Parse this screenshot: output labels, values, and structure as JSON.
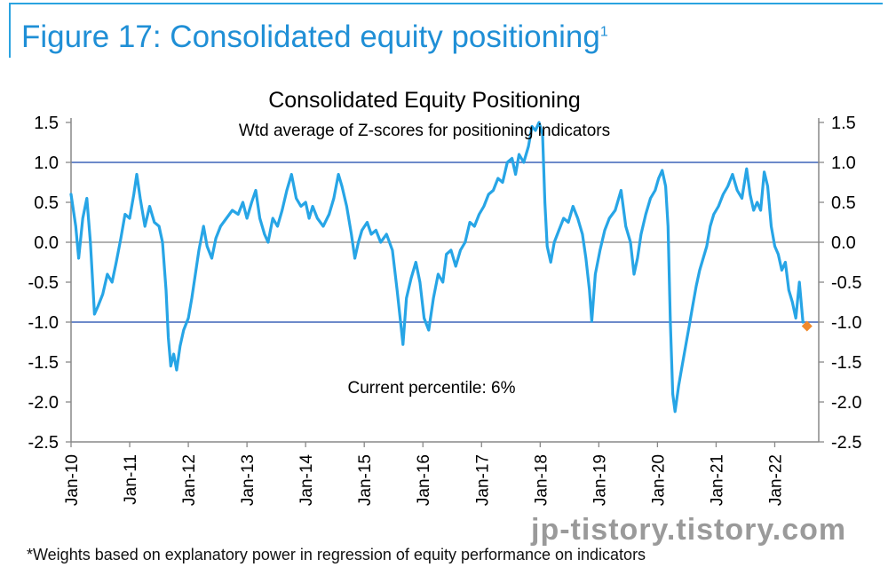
{
  "figure": {
    "title": "Figure 17: Consolidated equity positioning",
    "title_sup": "1",
    "footnote": "*Weights based on explanatory power in regression of equity performance on indicators",
    "watermark": "jp-tistory.tistory.com"
  },
  "chart_data": {
    "type": "line",
    "title": "Consolidated Equity Positioning",
    "subtitle": "Wtd average of Z-scores for positioning indicators",
    "annotation": "Current percentile: 6%",
    "xlabel": "",
    "ylabel": "",
    "ylim": [
      -2.5,
      1.5
    ],
    "yticks": [
      1.5,
      1.0,
      0.5,
      0.0,
      -0.5,
      -1.0,
      -1.5,
      -2.0,
      -2.5
    ],
    "ytick_labels": [
      "1.5",
      "1.0",
      "0.5",
      "0.0",
      "-0.5",
      "-1.0",
      "-1.5",
      "-2.0",
      "-2.5"
    ],
    "xtick_labels": [
      "Jan-10",
      "Jan-11",
      "Jan-12",
      "Jan-13",
      "Jan-14",
      "Jan-15",
      "Jan-16",
      "Jan-17",
      "Jan-18",
      "Jan-19",
      "Jan-20",
      "Jan-21",
      "Jan-22"
    ],
    "xlim": [
      2010.0,
      2022.75
    ],
    "reference_lines": [
      1.0,
      0.0,
      -1.0
    ],
    "series": [
      {
        "color": "#27a5e6",
        "points": [
          [
            2010.0,
            0.6
          ],
          [
            2010.08,
            0.2
          ],
          [
            2010.13,
            -0.2
          ],
          [
            2010.2,
            0.3
          ],
          [
            2010.27,
            0.55
          ],
          [
            2010.33,
            0.0
          ],
          [
            2010.4,
            -0.9
          ],
          [
            2010.46,
            -0.8
          ],
          [
            2010.54,
            -0.65
          ],
          [
            2010.62,
            -0.4
          ],
          [
            2010.7,
            -0.5
          ],
          [
            2010.77,
            -0.25
          ],
          [
            2010.85,
            0.05
          ],
          [
            2010.92,
            0.35
          ],
          [
            2011.0,
            0.3
          ],
          [
            2011.07,
            0.6
          ],
          [
            2011.12,
            0.85
          ],
          [
            2011.18,
            0.55
          ],
          [
            2011.26,
            0.2
          ],
          [
            2011.34,
            0.45
          ],
          [
            2011.42,
            0.25
          ],
          [
            2011.5,
            0.2
          ],
          [
            2011.56,
            0.0
          ],
          [
            2011.62,
            -0.6
          ],
          [
            2011.66,
            -1.2
          ],
          [
            2011.7,
            -1.55
          ],
          [
            2011.75,
            -1.4
          ],
          [
            2011.8,
            -1.6
          ],
          [
            2011.86,
            -1.3
          ],
          [
            2011.92,
            -1.1
          ],
          [
            2012.0,
            -0.95
          ],
          [
            2012.06,
            -0.7
          ],
          [
            2012.12,
            -0.4
          ],
          [
            2012.18,
            -0.1
          ],
          [
            2012.26,
            0.2
          ],
          [
            2012.32,
            -0.05
          ],
          [
            2012.4,
            -0.2
          ],
          [
            2012.47,
            0.05
          ],
          [
            2012.55,
            0.2
          ],
          [
            2012.65,
            0.3
          ],
          [
            2012.75,
            0.4
          ],
          [
            2012.85,
            0.35
          ],
          [
            2012.93,
            0.5
          ],
          [
            2013.0,
            0.3
          ],
          [
            2013.08,
            0.5
          ],
          [
            2013.15,
            0.65
          ],
          [
            2013.22,
            0.3
          ],
          [
            2013.3,
            0.1
          ],
          [
            2013.36,
            0.0
          ],
          [
            2013.44,
            0.3
          ],
          [
            2013.52,
            0.2
          ],
          [
            2013.6,
            0.4
          ],
          [
            2013.68,
            0.65
          ],
          [
            2013.76,
            0.85
          ],
          [
            2013.84,
            0.55
          ],
          [
            2013.92,
            0.45
          ],
          [
            2014.0,
            0.5
          ],
          [
            2014.06,
            0.3
          ],
          [
            2014.12,
            0.45
          ],
          [
            2014.2,
            0.3
          ],
          [
            2014.3,
            0.2
          ],
          [
            2014.4,
            0.35
          ],
          [
            2014.48,
            0.55
          ],
          [
            2014.56,
            0.85
          ],
          [
            2014.62,
            0.7
          ],
          [
            2014.7,
            0.45
          ],
          [
            2014.78,
            0.1
          ],
          [
            2014.84,
            -0.2
          ],
          [
            2014.9,
            0.0
          ],
          [
            2014.96,
            0.15
          ],
          [
            2015.05,
            0.25
          ],
          [
            2015.12,
            0.1
          ],
          [
            2015.2,
            0.15
          ],
          [
            2015.28,
            0.0
          ],
          [
            2015.38,
            0.1
          ],
          [
            2015.48,
            -0.1
          ],
          [
            2015.56,
            -0.6
          ],
          [
            2015.62,
            -1.0
          ],
          [
            2015.66,
            -1.28
          ],
          [
            2015.72,
            -0.7
          ],
          [
            2015.8,
            -0.45
          ],
          [
            2015.88,
            -0.25
          ],
          [
            2015.95,
            -0.5
          ],
          [
            2016.02,
            -0.95
          ],
          [
            2016.1,
            -1.1
          ],
          [
            2016.18,
            -0.7
          ],
          [
            2016.26,
            -0.4
          ],
          [
            2016.34,
            -0.5
          ],
          [
            2016.4,
            -0.15
          ],
          [
            2016.48,
            -0.1
          ],
          [
            2016.56,
            -0.3
          ],
          [
            2016.64,
            -0.1
          ],
          [
            2016.72,
            0.0
          ],
          [
            2016.8,
            0.25
          ],
          [
            2016.88,
            0.2
          ],
          [
            2016.96,
            0.35
          ],
          [
            2017.04,
            0.45
          ],
          [
            2017.12,
            0.6
          ],
          [
            2017.2,
            0.65
          ],
          [
            2017.28,
            0.8
          ],
          [
            2017.36,
            0.75
          ],
          [
            2017.44,
            1.0
          ],
          [
            2017.52,
            1.05
          ],
          [
            2017.58,
            0.85
          ],
          [
            2017.64,
            1.1
          ],
          [
            2017.72,
            1.0
          ],
          [
            2017.8,
            1.2
          ],
          [
            2017.86,
            1.45
          ],
          [
            2017.92,
            1.4
          ],
          [
            2017.98,
            1.5
          ],
          [
            2018.04,
            1.35
          ],
          [
            2018.08,
            0.5
          ],
          [
            2018.12,
            -0.05
          ],
          [
            2018.18,
            -0.25
          ],
          [
            2018.24,
            0.0
          ],
          [
            2018.32,
            0.15
          ],
          [
            2018.4,
            0.3
          ],
          [
            2018.48,
            0.25
          ],
          [
            2018.56,
            0.45
          ],
          [
            2018.64,
            0.3
          ],
          [
            2018.72,
            0.1
          ],
          [
            2018.78,
            -0.2
          ],
          [
            2018.84,
            -0.6
          ],
          [
            2018.88,
            -0.99
          ],
          [
            2018.94,
            -0.4
          ],
          [
            2019.02,
            -0.1
          ],
          [
            2019.1,
            0.15
          ],
          [
            2019.18,
            0.3
          ],
          [
            2019.28,
            0.4
          ],
          [
            2019.38,
            0.65
          ],
          [
            2019.46,
            0.2
          ],
          [
            2019.54,
            0.0
          ],
          [
            2019.6,
            -0.4
          ],
          [
            2019.66,
            -0.2
          ],
          [
            2019.72,
            0.1
          ],
          [
            2019.8,
            0.35
          ],
          [
            2019.88,
            0.55
          ],
          [
            2019.96,
            0.65
          ],
          [
            2020.02,
            0.8
          ],
          [
            2020.08,
            0.9
          ],
          [
            2020.14,
            0.7
          ],
          [
            2020.18,
            0.2
          ],
          [
            2020.22,
            -1.0
          ],
          [
            2020.26,
            -1.9
          ],
          [
            2020.3,
            -2.12
          ],
          [
            2020.36,
            -1.8
          ],
          [
            2020.42,
            -1.55
          ],
          [
            2020.48,
            -1.3
          ],
          [
            2020.54,
            -1.05
          ],
          [
            2020.6,
            -0.8
          ],
          [
            2020.66,
            -0.55
          ],
          [
            2020.72,
            -0.35
          ],
          [
            2020.78,
            -0.2
          ],
          [
            2020.84,
            -0.05
          ],
          [
            2020.9,
            0.2
          ],
          [
            2020.96,
            0.35
          ],
          [
            2021.04,
            0.45
          ],
          [
            2021.12,
            0.6
          ],
          [
            2021.2,
            0.7
          ],
          [
            2021.28,
            0.85
          ],
          [
            2021.36,
            0.65
          ],
          [
            2021.44,
            0.55
          ],
          [
            2021.52,
            0.92
          ],
          [
            2021.58,
            0.6
          ],
          [
            2021.64,
            0.4
          ],
          [
            2021.7,
            0.5
          ],
          [
            2021.76,
            0.4
          ],
          [
            2021.82,
            0.88
          ],
          [
            2021.88,
            0.7
          ],
          [
            2021.94,
            0.2
          ],
          [
            2022.0,
            -0.05
          ],
          [
            2022.06,
            -0.15
          ],
          [
            2022.12,
            -0.35
          ],
          [
            2022.18,
            -0.25
          ],
          [
            2022.24,
            -0.6
          ],
          [
            2022.3,
            -0.75
          ],
          [
            2022.36,
            -0.95
          ],
          [
            2022.42,
            -0.5
          ],
          [
            2022.48,
            -1.0
          ]
        ]
      }
    ],
    "current_marker": {
      "x": 2022.55,
      "y": -1.05,
      "color": "#f08a2c"
    }
  }
}
